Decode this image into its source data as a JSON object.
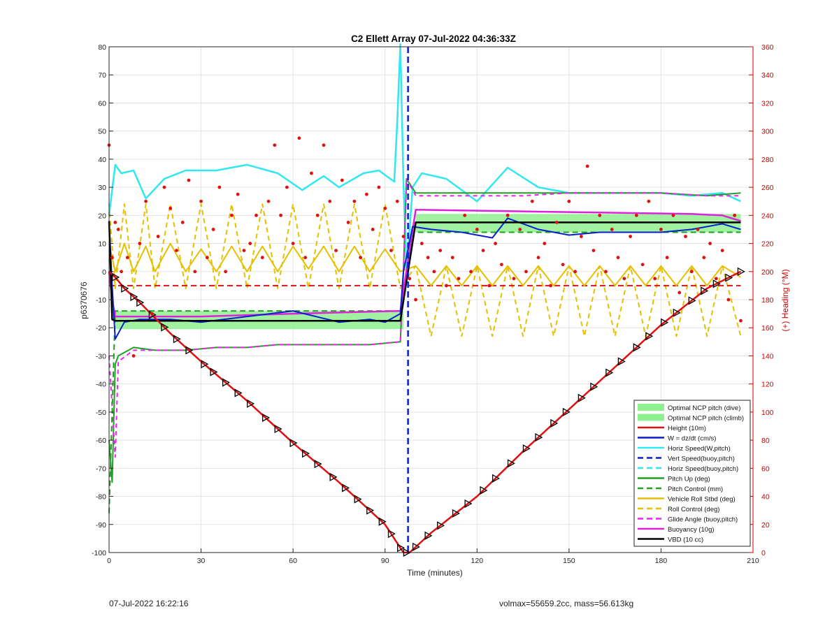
{
  "footer": {
    "timestamp": "07-Jul-2022 16:22:16",
    "mass_info": "volmax=55659.2cc, mass=56.613kg"
  },
  "chart_data": {
    "type": "line",
    "title": "C2 Ellett Array 07-Jul-2022 04:36:33Z",
    "xlabel": "Time (minutes)",
    "ylabel": "p6370676",
    "y2label": "(+) Heading (°M)",
    "xlim": [
      0,
      210
    ],
    "ylim": [
      -100,
      80
    ],
    "y2lim": [
      0,
      360
    ],
    "xticks": [
      0,
      30,
      60,
      90,
      120,
      150,
      180,
      210
    ],
    "yticks": [
      -100,
      -90,
      -80,
      -70,
      -60,
      -50,
      -40,
      -30,
      -20,
      -10,
      0,
      10,
      20,
      30,
      40,
      50,
      60,
      70,
      80
    ],
    "y2ticks": [
      0,
      20,
      40,
      60,
      80,
      100,
      120,
      140,
      160,
      180,
      200,
      220,
      240,
      260,
      280,
      300,
      320,
      340,
      360
    ],
    "grid": true,
    "legend_position": "bottom-right",
    "colors": {
      "height": "#e01010",
      "w": "#0a1fcc",
      "horiz": "#30e8f0",
      "pitch": "#20a020",
      "roll": "#e6c000",
      "glide": "#ee22ee",
      "buoyancy": "#dd22dd",
      "vbd": "#000000",
      "ncp": "#8ff08f",
      "heading": "#dd1111",
      "right_axis": "#cc0000"
    },
    "legend": [
      {
        "label": "Optimal NCP pitch (dive)",
        "style": "patch",
        "color": "#8ff08f"
      },
      {
        "label": "Optimal NCP pitch (climb)",
        "style": "patch",
        "color": "#8ff08f"
      },
      {
        "label": "Height (10m)",
        "style": "solid",
        "color": "#e01010"
      },
      {
        "label": "W = dz/dt (cm/s)",
        "style": "solid",
        "color": "#0a1fcc"
      },
      {
        "label": "Horiz Speed(W,pitch)",
        "style": "solid",
        "color": "#30e8f0"
      },
      {
        "label": "Vert Speed(buoy,pitch)",
        "style": "dash",
        "color": "#0a1fcc"
      },
      {
        "label": "Horiz Speed(buoy,pitch)",
        "style": "dash",
        "color": "#30e8f0"
      },
      {
        "label": "Pitch Up (deg)",
        "style": "solid",
        "color": "#20a020"
      },
      {
        "label": "Pitch Control (mm)",
        "style": "dash",
        "color": "#20a020"
      },
      {
        "label": "Vehicle Roll Stbd (deg)",
        "style": "solid",
        "color": "#e6c000"
      },
      {
        "label": "Roll Control (deg)",
        "style": "dash",
        "color": "#e6c000"
      },
      {
        "label": "Glide Angle (buoy,pitch)",
        "style": "dash",
        "color": "#ee22ee"
      },
      {
        "label": "Buoyancy (10g)",
        "style": "solid",
        "color": "#dd22dd"
      },
      {
        "label": "VBD (10 cc)",
        "style": "solid",
        "color": "#000000"
      }
    ],
    "series": [
      {
        "key": "height",
        "x": [
          0,
          2,
          5,
          10,
          20,
          30,
          45,
          60,
          75,
          90,
          96,
          97,
          98,
          100,
          105,
          120,
          135,
          150,
          165,
          180,
          195,
          206
        ],
        "y": [
          0,
          -2,
          -6,
          -11,
          -22,
          -32,
          -46,
          -61,
          -75,
          -90,
          -100,
          -100,
          -100,
          -98,
          -93,
          -80,
          -64,
          -49,
          -34,
          -19,
          -6,
          0
        ]
      },
      {
        "key": "w",
        "x": [
          0,
          1,
          2,
          5,
          10,
          20,
          30,
          45,
          60,
          75,
          85,
          90,
          95,
          96,
          99,
          105,
          115,
          125,
          130,
          140,
          150,
          160,
          170,
          180,
          190,
          200,
          206
        ],
        "y": [
          18,
          -5,
          -24,
          -18,
          -17,
          -17,
          -18,
          -16,
          -14,
          -18,
          -17,
          -18,
          -15,
          0,
          16,
          15,
          14,
          12,
          19,
          15,
          13,
          14,
          14,
          14,
          15,
          17,
          15
        ]
      },
      {
        "key": "horiz",
        "x": [
          0,
          2,
          4,
          8,
          12,
          18,
          25,
          35,
          45,
          55,
          63,
          70,
          75,
          83,
          88,
          93,
          94,
          95,
          96,
          97,
          99,
          102,
          110,
          120,
          130,
          140,
          150,
          160,
          170,
          180,
          190,
          200,
          206
        ],
        "y": [
          20,
          38,
          35,
          36,
          26,
          33,
          36,
          36,
          38,
          35,
          29,
          34,
          30,
          35,
          36,
          32,
          54,
          81,
          32,
          0,
          30,
          35,
          33,
          25,
          37,
          30,
          28,
          28,
          28,
          28,
          27,
          28,
          25
        ]
      },
      {
        "key": "pitch_up",
        "x": [
          0,
          1,
          2,
          3,
          8,
          15,
          25,
          35,
          45,
          55,
          65,
          75,
          85,
          95,
          96,
          97,
          100,
          110,
          120,
          135,
          150,
          165,
          180,
          195,
          206
        ],
        "y": [
          -60,
          -75,
          -33,
          -30,
          -27,
          -28,
          -28,
          -27,
          -27,
          -26,
          -26,
          -26,
          -26,
          -25,
          0,
          33,
          28,
          28,
          28,
          28,
          28,
          28,
          28,
          27,
          28
        ]
      },
      {
        "key": "pitch_ctrl",
        "x": [
          0,
          2,
          60,
          95,
          97,
          99,
          206
        ],
        "y": [
          -86,
          -14,
          -14,
          -14,
          0,
          14,
          14
        ]
      },
      {
        "key": "roll",
        "x": [
          0,
          2,
          5,
          8,
          12,
          15,
          20,
          25,
          30,
          35,
          40,
          45,
          50,
          55,
          60,
          65,
          70,
          75,
          80,
          85,
          90,
          95,
          100,
          105,
          110,
          115,
          120,
          125,
          130,
          135,
          140,
          145,
          150,
          155,
          160,
          165,
          170,
          175,
          180,
          185,
          190,
          195,
          200,
          206
        ],
        "y": [
          10,
          0,
          10,
          0,
          9,
          0,
          10,
          0,
          8,
          0,
          9,
          0,
          9,
          0,
          9,
          1,
          9,
          0,
          9,
          0,
          8,
          0,
          2,
          -5,
          2,
          -5,
          2,
          -5,
          2,
          -5,
          2,
          -5,
          2,
          -5,
          2,
          -5,
          2,
          -5,
          2,
          -5,
          2,
          -5,
          2,
          -2
        ]
      },
      {
        "key": "glide",
        "x": [
          0,
          2,
          3,
          8,
          15,
          25,
          35,
          45,
          55,
          65,
          75,
          85,
          95,
          96,
          97,
          100,
          110,
          120,
          135,
          150,
          165,
          180,
          195,
          206
        ],
        "y": [
          -30,
          -66,
          -32,
          -28,
          -28,
          -28,
          -27,
          -27,
          -26,
          -26,
          -26,
          -26,
          -25,
          0,
          33,
          27,
          27,
          27,
          27,
          28,
          28,
          28,
          27,
          27
        ]
      },
      {
        "key": "buoyancy",
        "x": [
          0,
          1,
          2,
          30,
          60,
          95,
          100,
          130,
          160,
          190,
          200,
          206
        ],
        "y": [
          0,
          -10,
          -16,
          -16,
          -15,
          -14,
          22,
          21.5,
          21,
          20.5,
          20,
          18
        ]
      },
      {
        "key": "vbd",
        "x": [
          0,
          1,
          2,
          95,
          100,
          206
        ],
        "y": [
          18,
          -17,
          -17.5,
          -17.5,
          17.5,
          17.5
        ]
      }
    ],
    "ncp_bands": [
      {
        "x": [
          2,
          96
        ],
        "y": [
          -20.5,
          -14
        ]
      },
      {
        "x": [
          100,
          206
        ],
        "y": [
          14,
          20.5
        ]
      }
    ],
    "heading_mean": {
      "x": [
        0,
        206
      ],
      "y2": 190
    },
    "heading": {
      "x": [
        0,
        1,
        2,
        3,
        4,
        6,
        8,
        10,
        12,
        14,
        16,
        18,
        20,
        22,
        24,
        26,
        28,
        30,
        32,
        34,
        36,
        38,
        40,
        42,
        44,
        46,
        48,
        50,
        52,
        54,
        56,
        58,
        60,
        62,
        64,
        66,
        68,
        70,
        72,
        74,
        76,
        78,
        80,
        82,
        84,
        86,
        88,
        90,
        92,
        94,
        96,
        98,
        100,
        102,
        104,
        106,
        108,
        110,
        112,
        114,
        116,
        118,
        120,
        122,
        124,
        126,
        128,
        130,
        132,
        134,
        136,
        138,
        140,
        142,
        144,
        146,
        148,
        150,
        152,
        154,
        156,
        158,
        160,
        162,
        164,
        166,
        168,
        170,
        172,
        174,
        176,
        178,
        180,
        182,
        184,
        186,
        188,
        190,
        192,
        194,
        196,
        198,
        200,
        202,
        204,
        206
      ],
      "y2": [
        290,
        210,
        235,
        230,
        200,
        210,
        140,
        220,
        250,
        170,
        225,
        260,
        245,
        215,
        235,
        265,
        200,
        250,
        210,
        230,
        260,
        200,
        240,
        255,
        215,
        220,
        240,
        210,
        250,
        290,
        240,
        260,
        220,
        295,
        210,
        270,
        240,
        290,
        250,
        215,
        265,
        235,
        250,
        210,
        255,
        230,
        260,
        245,
        215,
        250,
        225,
        195,
        180,
        220,
        210,
        200,
        215,
        190,
        210,
        195,
        240,
        200,
        230,
        215,
        190,
        220,
        205,
        240,
        195,
        230,
        200,
        250,
        210,
        220,
        190,
        235,
        205,
        250,
        200,
        225,
        275,
        215,
        240,
        200,
        230,
        210,
        195,
        225,
        240,
        205,
        250,
        195,
        230,
        210,
        240,
        185,
        225,
        200,
        230,
        210,
        220,
        195,
        215,
        180,
        240,
        165
      ]
    },
    "markers_x": [
      2,
      5,
      8,
      10,
      14,
      18,
      22,
      26,
      31,
      34,
      38,
      42,
      46,
      51,
      55,
      60,
      64,
      68,
      73,
      77,
      81,
      85,
      89,
      92,
      95,
      97,
      100,
      104,
      108,
      113,
      117,
      122,
      126,
      131,
      136,
      140,
      145,
      149,
      154,
      158,
      163,
      167,
      172,
      176,
      181,
      185,
      190,
      194,
      198,
      202,
      206
    ]
  }
}
